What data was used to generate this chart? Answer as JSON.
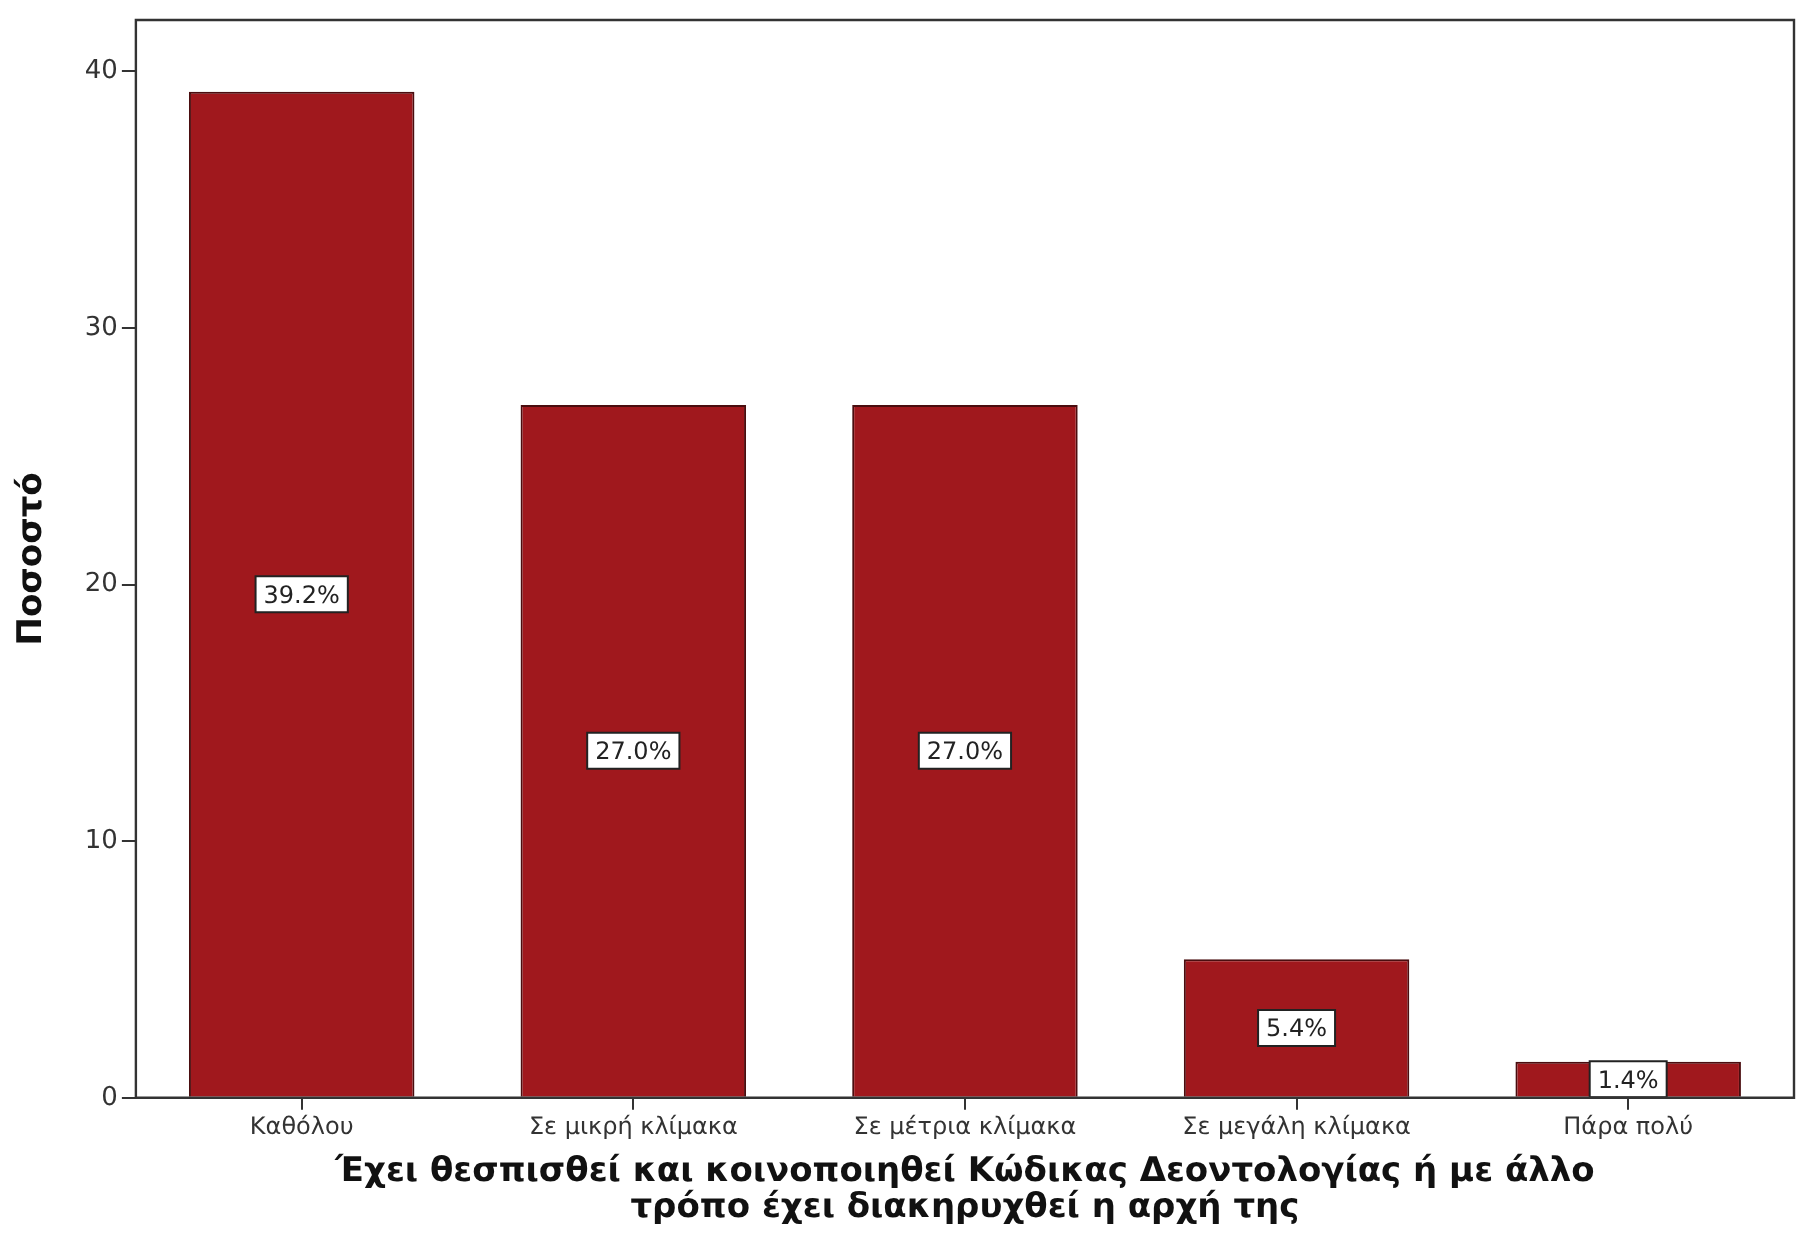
{
  "chart_data": {
    "type": "bar",
    "xlabel": "Έχει θεσπισθεί και κοινοποιηθεί Κώδικας Δεοντολογίας ή με άλλο τρόπο έχει διακηρυχθεί η αρχή της",
    "ylabel": "Ποσοστό",
    "categories": [
      "Καθόλου",
      "Σε μικρή κλίμακα",
      "Σε μέτρια κλίμακα",
      "Σε μεγάλη κλίμακα",
      "Πάρα πολύ"
    ],
    "values": [
      39.2,
      27.0,
      27.0,
      5.4,
      1.4
    ],
    "value_labels": [
      "39.2%",
      "27.0%",
      "27.0%",
      "5.4%",
      "1.4%"
    ],
    "color": "#a0181d",
    "ylim": [
      0,
      42
    ],
    "yticks": [
      0,
      10,
      20,
      30,
      40
    ]
  }
}
